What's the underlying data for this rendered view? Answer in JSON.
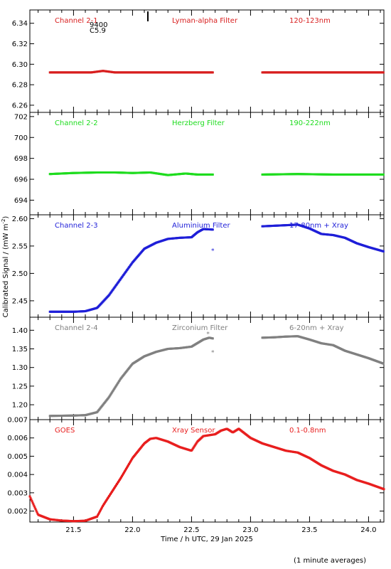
{
  "figure": {
    "ylabel": "Calibrated Signal / (mW m",
    "ylabel_sup": "-2",
    "ylabel_end": ")",
    "xlabel": "Time / h UTC, 29 Jan 2025",
    "footnote": "(1 minute averages)",
    "annotations": [
      "9400",
      "C5.9"
    ]
  },
  "chart_data": [
    {
      "type": "scatter",
      "name": "Channel 2-1",
      "filter": "Lyman-alpha Filter",
      "band": "120-123nm",
      "color": "#d81e1e",
      "xlim": [
        21.13,
        24.13
      ],
      "ylim": [
        6.253,
        6.353
      ],
      "yticks": [
        6.26,
        6.28,
        6.3,
        6.32,
        6.34
      ],
      "ytick_labels": [
        "6.26",
        "6.28",
        "6.30",
        "6.32",
        "6.34"
      ],
      "points": [
        [
          21.3,
          6.292
        ],
        [
          21.5,
          6.292
        ],
        [
          21.65,
          6.292
        ],
        [
          21.75,
          6.2935
        ],
        [
          21.85,
          6.292
        ],
        [
          22.0,
          6.292
        ],
        [
          22.2,
          6.292
        ],
        [
          22.4,
          6.292
        ],
        [
          22.6,
          6.292
        ],
        [
          22.68,
          6.292
        ],
        [
          23.1,
          6.292
        ],
        [
          23.4,
          6.292
        ],
        [
          23.7,
          6.292
        ],
        [
          24.0,
          6.292
        ],
        [
          24.13,
          6.292
        ]
      ],
      "gap": [
        22.68,
        23.1
      ]
    },
    {
      "type": "scatter",
      "name": "Channel 2-2",
      "filter": "Herzberg Filter",
      "band": "190-222nm",
      "color": "#1edc1e",
      "xlim": [
        21.13,
        24.13
      ],
      "ylim": [
        692.6,
        702.4
      ],
      "yticks": [
        694,
        696,
        698,
        700,
        702
      ],
      "ytick_labels": [
        "694",
        "696",
        "698",
        "700",
        "702"
      ],
      "points": [
        [
          21.3,
          696.5
        ],
        [
          21.5,
          696.6
        ],
        [
          21.7,
          696.65
        ],
        [
          21.85,
          696.65
        ],
        [
          22.0,
          696.6
        ],
        [
          22.15,
          696.65
        ],
        [
          22.3,
          696.4
        ],
        [
          22.45,
          696.55
        ],
        [
          22.55,
          696.45
        ],
        [
          22.68,
          696.45
        ],
        [
          23.1,
          696.45
        ],
        [
          23.4,
          696.5
        ],
        [
          23.7,
          696.45
        ],
        [
          24.0,
          696.45
        ],
        [
          24.13,
          696.45
        ]
      ],
      "gap": [
        22.68,
        23.1
      ]
    },
    {
      "type": "scatter",
      "name": "Channel 2-3",
      "filter": "Aluminium Filter",
      "band": "17-80nm + Xray",
      "color": "#1e1ed8",
      "xlim": [
        21.13,
        24.13
      ],
      "ylim": [
        2.42,
        2.607
      ],
      "yticks": [
        2.45,
        2.5,
        2.55,
        2.6
      ],
      "ytick_labels": [
        "2.45",
        "2.50",
        "2.55",
        "2.60"
      ],
      "points": [
        [
          21.3,
          2.43
        ],
        [
          21.5,
          2.43
        ],
        [
          21.6,
          2.431
        ],
        [
          21.7,
          2.437
        ],
        [
          21.8,
          2.46
        ],
        [
          21.9,
          2.49
        ],
        [
          22.0,
          2.52
        ],
        [
          22.1,
          2.545
        ],
        [
          22.2,
          2.556
        ],
        [
          22.3,
          2.563
        ],
        [
          22.4,
          2.565
        ],
        [
          22.5,
          2.566
        ],
        [
          22.55,
          2.575
        ],
        [
          22.6,
          2.581
        ],
        [
          22.68,
          2.58
        ],
        [
          23.1,
          2.586
        ],
        [
          23.2,
          2.587
        ],
        [
          23.3,
          2.588
        ],
        [
          23.4,
          2.589
        ],
        [
          23.5,
          2.582
        ],
        [
          23.6,
          2.572
        ],
        [
          23.7,
          2.57
        ],
        [
          23.8,
          2.565
        ],
        [
          23.9,
          2.555
        ],
        [
          24.0,
          2.548
        ],
        [
          24.13,
          2.54
        ]
      ],
      "outliers": [
        [
          22.68,
          2.543
        ]
      ],
      "gap": [
        22.68,
        23.1
      ]
    },
    {
      "type": "scatter",
      "name": "Channel 2-4",
      "filter": "Zirconium Filter",
      "band": "6-20nm + Xray",
      "color": "#808080",
      "xlim": [
        21.13,
        24.13
      ],
      "ylim": [
        1.16,
        1.435
      ],
      "yticks": [
        1.2,
        1.25,
        1.3,
        1.35,
        1.4
      ],
      "ytick_labels": [
        "1.20",
        "1.25",
        "1.30",
        "1.35",
        "1.40"
      ],
      "points": [
        [
          21.3,
          1.17
        ],
        [
          21.5,
          1.171
        ],
        [
          21.6,
          1.172
        ],
        [
          21.7,
          1.18
        ],
        [
          21.8,
          1.22
        ],
        [
          21.9,
          1.27
        ],
        [
          22.0,
          1.31
        ],
        [
          22.1,
          1.33
        ],
        [
          22.2,
          1.342
        ],
        [
          22.3,
          1.35
        ],
        [
          22.4,
          1.352
        ],
        [
          22.5,
          1.356
        ],
        [
          22.6,
          1.375
        ],
        [
          22.65,
          1.38
        ],
        [
          22.68,
          1.378
        ],
        [
          23.1,
          1.38
        ],
        [
          23.2,
          1.381
        ],
        [
          23.3,
          1.383
        ],
        [
          23.4,
          1.384
        ],
        [
          23.5,
          1.375
        ],
        [
          23.6,
          1.365
        ],
        [
          23.7,
          1.36
        ],
        [
          23.8,
          1.345
        ],
        [
          23.9,
          1.335
        ],
        [
          24.0,
          1.325
        ],
        [
          24.13,
          1.31
        ]
      ],
      "outliers": [
        [
          22.68,
          1.342
        ],
        [
          22.64,
          1.392
        ]
      ],
      "gap": [
        22.68,
        23.1
      ]
    },
    {
      "type": "scatter",
      "name": "GOES",
      "filter": "Xray Sensor",
      "band": "0.1-0.8nm",
      "color": "#e81e1e",
      "xlim": [
        21.13,
        24.13
      ],
      "ylim": [
        0.0014,
        0.007
      ],
      "yticks": [
        0.002,
        0.003,
        0.004,
        0.005,
        0.006,
        0.007
      ],
      "ytick_labels": [
        "0.002",
        "0.003",
        "0.004",
        "0.005",
        "0.006",
        "0.007"
      ],
      "points": [
        [
          21.13,
          0.0028
        ],
        [
          21.2,
          0.0018
        ],
        [
          21.3,
          0.00155
        ],
        [
          21.4,
          0.00148
        ],
        [
          21.5,
          0.00145
        ],
        [
          21.6,
          0.00147
        ],
        [
          21.7,
          0.0017
        ],
        [
          21.75,
          0.0023
        ],
        [
          21.8,
          0.0028
        ],
        [
          21.9,
          0.0038
        ],
        [
          22.0,
          0.0049
        ],
        [
          22.1,
          0.0057
        ],
        [
          22.15,
          0.00595
        ],
        [
          22.2,
          0.006
        ],
        [
          22.3,
          0.0058
        ],
        [
          22.4,
          0.0055
        ],
        [
          22.5,
          0.0053
        ],
        [
          22.55,
          0.0058
        ],
        [
          22.6,
          0.0061
        ],
        [
          22.7,
          0.0062
        ],
        [
          22.75,
          0.0064
        ],
        [
          22.8,
          0.0065
        ],
        [
          22.85,
          0.0063
        ],
        [
          22.9,
          0.0065
        ],
        [
          23.0,
          0.006
        ],
        [
          23.1,
          0.0057
        ],
        [
          23.2,
          0.0055
        ],
        [
          23.3,
          0.0053
        ],
        [
          23.4,
          0.0052
        ],
        [
          23.5,
          0.0049
        ],
        [
          23.6,
          0.0045
        ],
        [
          23.7,
          0.0042
        ],
        [
          23.8,
          0.004
        ],
        [
          23.9,
          0.0037
        ],
        [
          24.0,
          0.0035
        ],
        [
          24.13,
          0.0032
        ]
      ]
    }
  ],
  "x_axis": {
    "xlim": [
      21.13,
      24.13
    ],
    "ticks": [
      21.5,
      22.0,
      22.5,
      23.0,
      23.5,
      24.0
    ],
    "tick_labels": [
      "21.5",
      "22.0",
      "22.5",
      "23.0",
      "23.5",
      "24.0"
    ]
  }
}
